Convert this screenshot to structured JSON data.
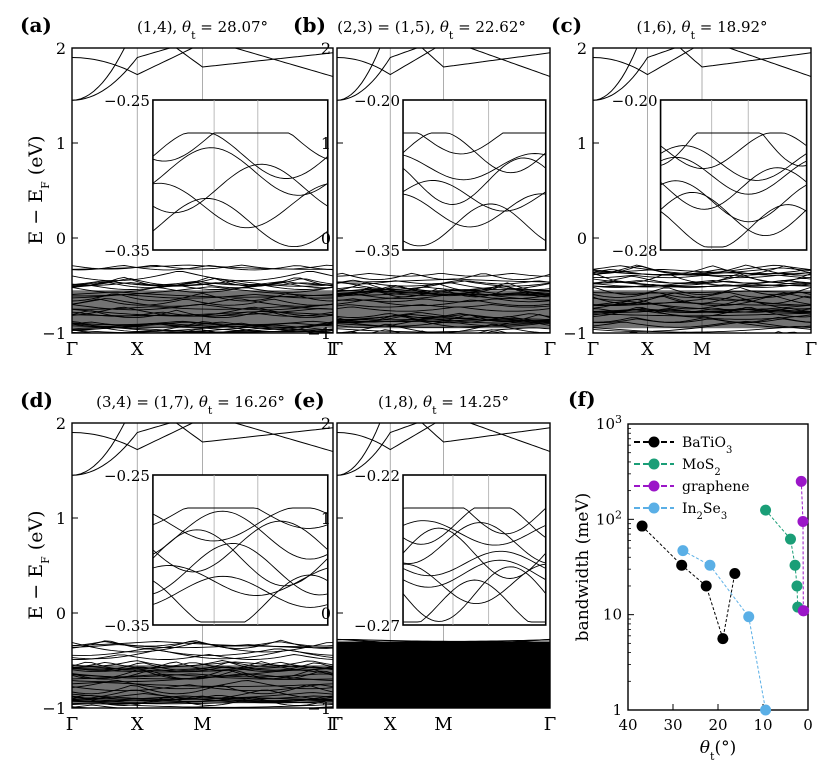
{
  "figure": {
    "ylabel_band": "E − E",
    "ylabel_band_sub": "F",
    "ylabel_band_unit": " (eV)",
    "band_yticks": [
      "2",
      "1",
      "0",
      "−1"
    ],
    "kpath": [
      "Γ",
      "X",
      "M",
      "Γ"
    ]
  },
  "panels": [
    {
      "label": "(a)",
      "title": "(1,4), θ",
      "title_sub": "t",
      "title_value": " = 28.07°",
      "inset_top": "−0.25",
      "inset_bottom": "−0.35"
    },
    {
      "label": "(b)",
      "title": "(2,3) = (1,5), θ",
      "title_sub": "t",
      "title_value": " = 22.62°",
      "inset_top": "−0.20",
      "inset_bottom": "−0.35"
    },
    {
      "label": "(c)",
      "title": "(1,6), θ",
      "title_sub": "t",
      "title_value": " = 18.92°",
      "inset_top": "−0.20",
      "inset_bottom": "−0.28"
    },
    {
      "label": "(d)",
      "title": "(3,4) = (1,7), θ",
      "title_sub": "t",
      "title_value": " = 16.26°",
      "inset_top": "−0.25",
      "inset_bottom": "−0.35"
    },
    {
      "label": "(e)",
      "title": "(1,8), θ",
      "title_sub": "t",
      "title_value": " = 14.25°",
      "inset_top": "−0.22",
      "inset_bottom": "−0.27"
    }
  ],
  "chart_data": [
    {
      "type": "band_structure",
      "panels": [
        "(a)",
        "(b)",
        "(c)",
        "(d)",
        "(e)"
      ],
      "ylabel": "E − E_F (eV)",
      "ylim": [
        -1,
        2
      ],
      "yticks": [
        2,
        1,
        0,
        -1
      ],
      "xticks": [
        "Γ",
        "X",
        "M",
        "Γ"
      ]
    },
    {
      "type": "scatter",
      "panel": "(f)",
      "xlabel": "θt(°)",
      "ylabel": "bandwidth (meV)",
      "yscale": "log",
      "ylim": [
        1,
        1000
      ],
      "xlim": [
        40,
        0
      ],
      "xticks": [
        40,
        30,
        20,
        10,
        0
      ],
      "yticks": [
        "1",
        "10",
        "10²",
        "10³"
      ],
      "series": [
        {
          "name": "BaTiO3",
          "color": "#000000",
          "x": [
            36.87,
            28.07,
            22.62,
            18.92,
            16.26
          ],
          "y": [
            85,
            33,
            20,
            5.6,
            27
          ]
        },
        {
          "name": "MoS2",
          "color": "#1a9e77",
          "x": [
            9.43,
            3.89,
            2.88,
            2.45,
            2.28
          ],
          "y": [
            125,
            62,
            33,
            20,
            12
          ]
        },
        {
          "name": "graphene",
          "color": "#9b16c8",
          "x": [
            1.5,
            1.12,
            1.05,
            0.96
          ],
          "y": [
            250,
            95,
            11,
            11
          ]
        },
        {
          "name": "In2Se3",
          "color": "#5aafe6",
          "x": [
            27.8,
            21.79,
            13.17,
            9.43
          ],
          "y": [
            47,
            33,
            9.5,
            1
          ]
        }
      ]
    }
  ],
  "panel_f": {
    "label": "(f)",
    "ylabel": "bandwidth (meV)",
    "xlabel": "θ",
    "xlabel_sub": "t",
    "xlabel_unit": "(°)",
    "legend": [
      {
        "main": "BaTiO",
        "sub": "3",
        "rest": ""
      },
      {
        "main": "MoS",
        "sub": "2",
        "rest": ""
      },
      {
        "main": "graphene",
        "sub": "",
        "rest": ""
      },
      {
        "main": "In",
        "sub": "2",
        "rest": "Se",
        "sub2": "3"
      }
    ],
    "xtick_labels": [
      "40",
      "30",
      "20",
      "10",
      "0"
    ],
    "ytick_labels": [
      "1",
      "10",
      "10",
      "10"
    ],
    "ytick_exps": [
      "",
      "",
      "2",
      "3"
    ]
  }
}
